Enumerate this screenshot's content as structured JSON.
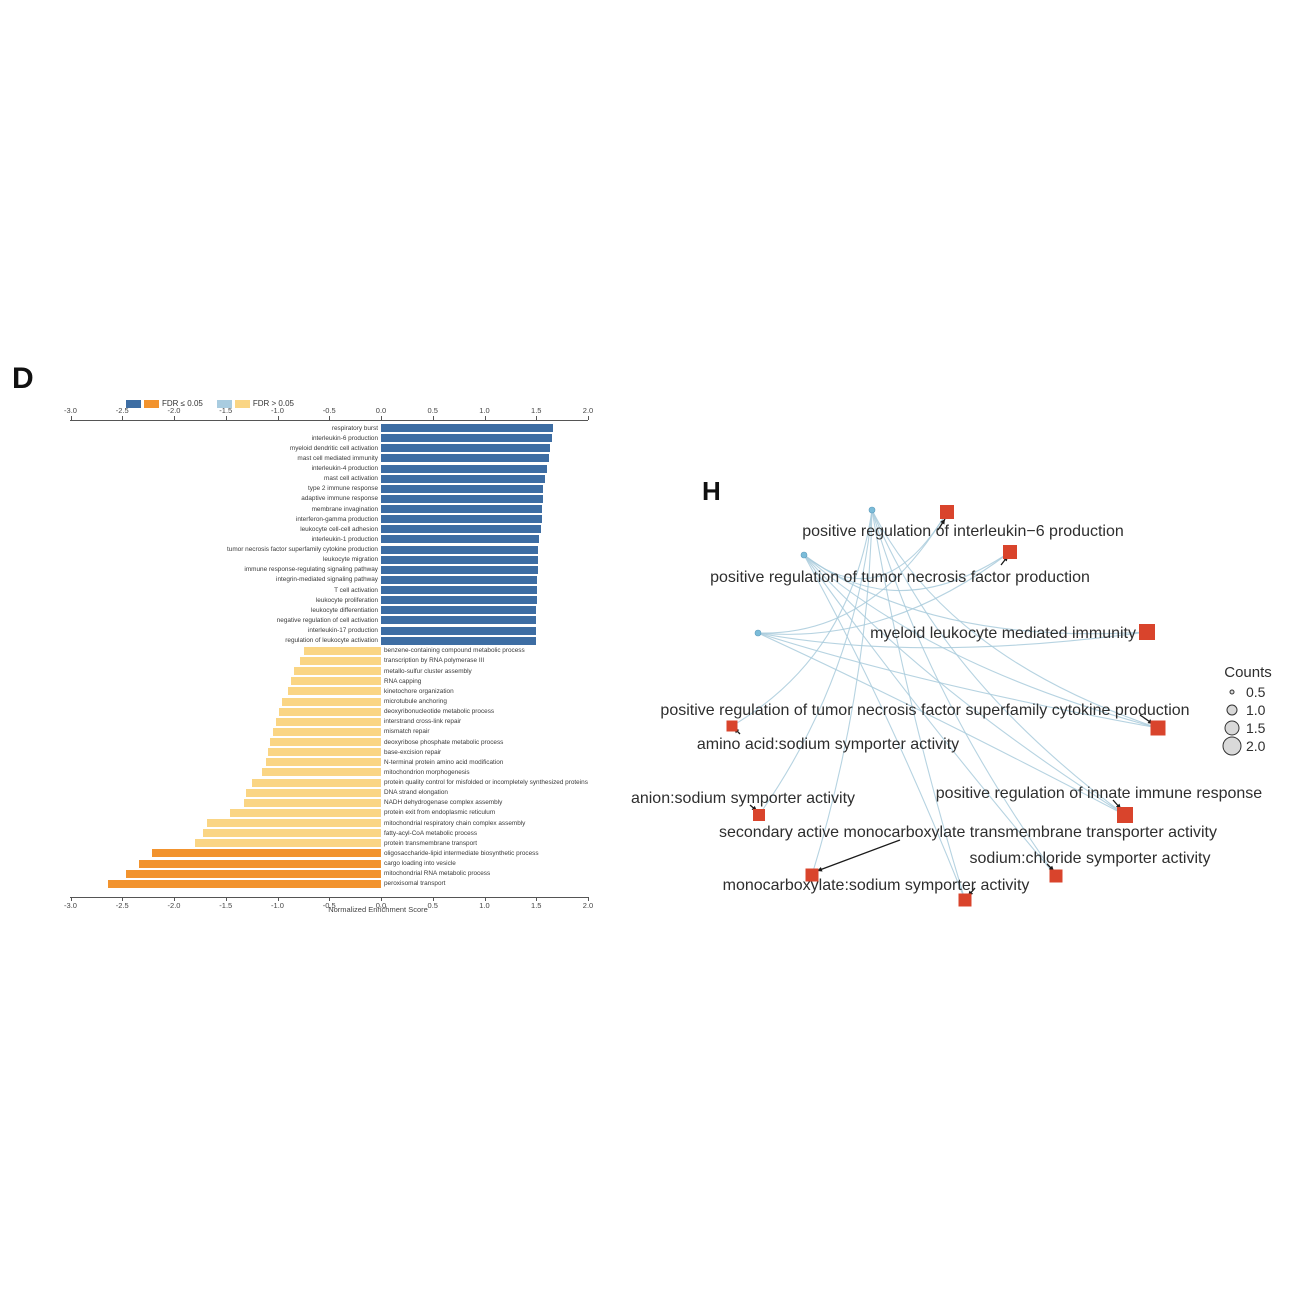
{
  "panel_d": {
    "label": "D",
    "legend": [
      {
        "swatches": [
          "#3d6da3",
          "#f2932e"
        ],
        "label": "FDR ≤ 0.05"
      },
      {
        "swatches": [
          "#a9cce0",
          "#fad584"
        ],
        "label": "FDR > 0.05"
      }
    ],
    "axis": {
      "label": "Normalized Enrichment Score",
      "ticks": [
        "-3.0",
        "-2.5",
        "-2.0",
        "-1.5",
        "-1.0",
        "-0.5",
        "0.0",
        "0.5",
        "1.0",
        "1.5",
        "2.0"
      ]
    },
    "chart_data": {
      "type": "bar",
      "orientation": "horizontal",
      "xlabel": "Normalized Enrichment Score",
      "xlim": [
        -3.0,
        2.2
      ],
      "fdr_colors": {
        "sig-pos": "#3d6da3",
        "ns-pos": "#a9cce0",
        "ns-neg": "#fad584",
        "sig-neg": "#f2932e"
      },
      "bars": [
        {
          "label": "respiratory burst",
          "value": 1.66,
          "fdr": "sig-pos"
        },
        {
          "label": "interleukin-6 production",
          "value": 1.65,
          "fdr": "sig-pos"
        },
        {
          "label": "myeloid dendritic cell activation",
          "value": 1.63,
          "fdr": "sig-pos"
        },
        {
          "label": "mast cell mediated immunity",
          "value": 1.62,
          "fdr": "sig-pos"
        },
        {
          "label": "interleukin-4 production",
          "value": 1.6,
          "fdr": "sig-pos"
        },
        {
          "label": "mast cell activation",
          "value": 1.58,
          "fdr": "sig-pos"
        },
        {
          "label": "type 2 immune response",
          "value": 1.57,
          "fdr": "sig-pos"
        },
        {
          "label": "adaptive immune response",
          "value": 1.57,
          "fdr": "sig-pos"
        },
        {
          "label": "membrane invagination",
          "value": 1.56,
          "fdr": "sig-pos"
        },
        {
          "label": "interferon-gamma production",
          "value": 1.56,
          "fdr": "sig-pos"
        },
        {
          "label": "leukocyte cell-cell adhesion",
          "value": 1.55,
          "fdr": "sig-pos"
        },
        {
          "label": "interleukin-1 production",
          "value": 1.53,
          "fdr": "sig-pos"
        },
        {
          "label": "tumor necrosis factor superfamily cytokine production",
          "value": 1.52,
          "fdr": "sig-pos"
        },
        {
          "label": "leukocyte migration",
          "value": 1.52,
          "fdr": "sig-pos"
        },
        {
          "label": "immune response-regulating signaling pathway",
          "value": 1.52,
          "fdr": "sig-pos"
        },
        {
          "label": "integrin-mediated signaling pathway",
          "value": 1.51,
          "fdr": "sig-pos"
        },
        {
          "label": "T cell activation",
          "value": 1.51,
          "fdr": "sig-pos"
        },
        {
          "label": "leukocyte proliferation",
          "value": 1.51,
          "fdr": "sig-pos"
        },
        {
          "label": "leukocyte differentiation",
          "value": 1.5,
          "fdr": "sig-pos"
        },
        {
          "label": "negative regulation of cell activation",
          "value": 1.5,
          "fdr": "sig-pos"
        },
        {
          "label": "interleukin-17 production",
          "value": 1.5,
          "fdr": "sig-pos"
        },
        {
          "label": "regulation of leukocyte activation",
          "value": 1.5,
          "fdr": "sig-pos"
        },
        {
          "label": "benzene-containing compound metabolic process",
          "value": -0.74,
          "fdr": "ns-neg"
        },
        {
          "label": "transcription by RNA polymerase III",
          "value": -0.78,
          "fdr": "ns-neg"
        },
        {
          "label": "metallo-sulfur cluster assembly",
          "value": -0.84,
          "fdr": "ns-neg"
        },
        {
          "label": "RNA capping",
          "value": -0.87,
          "fdr": "ns-neg"
        },
        {
          "label": "kinetochore organization",
          "value": -0.9,
          "fdr": "ns-neg"
        },
        {
          "label": "microtubule anchoring",
          "value": -0.96,
          "fdr": "ns-neg"
        },
        {
          "label": "deoxyribonucleotide metabolic process",
          "value": -0.99,
          "fdr": "ns-neg"
        },
        {
          "label": "interstrand cross-link repair",
          "value": -1.01,
          "fdr": "ns-neg"
        },
        {
          "label": "mismatch repair",
          "value": -1.04,
          "fdr": "ns-neg"
        },
        {
          "label": "deoxyribose phosphate metabolic process",
          "value": -1.07,
          "fdr": "ns-neg"
        },
        {
          "label": "base-excision repair",
          "value": -1.09,
          "fdr": "ns-neg"
        },
        {
          "label": "N-terminal protein amino acid modification",
          "value": -1.11,
          "fdr": "ns-neg"
        },
        {
          "label": "mitochondrion morphogenesis",
          "value": -1.15,
          "fdr": "ns-neg"
        },
        {
          "label": "protein quality control for misfolded or incompletely synthesized proteins",
          "value": -1.25,
          "fdr": "ns-neg"
        },
        {
          "label": "DNA strand elongation",
          "value": -1.3,
          "fdr": "ns-neg"
        },
        {
          "label": "NADH dehydrogenase complex assembly",
          "value": -1.32,
          "fdr": "ns-neg"
        },
        {
          "label": "protein exit from endoplasmic reticulum",
          "value": -1.46,
          "fdr": "ns-neg"
        },
        {
          "label": "mitochondrial respiratory chain complex assembly",
          "value": -1.68,
          "fdr": "ns-neg"
        },
        {
          "label": "fatty-acyl-CoA metabolic process",
          "value": -1.72,
          "fdr": "ns-neg"
        },
        {
          "label": "protein transmembrane transport",
          "value": -1.8,
          "fdr": "ns-neg"
        },
        {
          "label": "oligosaccharide-lipid intermediate biosynthetic process",
          "value": -2.21,
          "fdr": "sig-neg"
        },
        {
          "label": "cargo loading into vesicle",
          "value": -2.34,
          "fdr": "sig-neg"
        },
        {
          "label": "mitochondrial RNA metabolic process",
          "value": -2.46,
          "fdr": "sig-neg"
        },
        {
          "label": "peroxisomal transport",
          "value": -2.64,
          "fdr": "sig-neg"
        }
      ]
    }
  },
  "panel_h": {
    "label": "H",
    "chart_data": {
      "type": "network",
      "node_color": "#d9442c",
      "gene_color": "#7bbcd9",
      "edge_color": "#a9cbdc",
      "terms": [
        {
          "id": "il6",
          "label": "positive regulation of interleukin−6 production",
          "sq": [
            327,
            42,
            14
          ],
          "text": [
            343,
            66,
            "middle"
          ]
        },
        {
          "id": "tnf",
          "label": "positive regulation of tumor necrosis factor production",
          "sq": [
            390,
            82,
            14
          ],
          "text": [
            280,
            112,
            "middle"
          ]
        },
        {
          "id": "myeloid",
          "label": "myeloid leukocyte mediated immunity",
          "sq": [
            527,
            162,
            16
          ],
          "text": [
            516,
            168,
            "end"
          ]
        },
        {
          "id": "tnfsf",
          "label": "positive regulation of tumor necrosis factor superfamily cytokine production",
          "sq": [
            538,
            258,
            15
          ],
          "text": [
            305,
            245,
            "middle"
          ]
        },
        {
          "id": "amino",
          "label": "amino acid:sodium symporter activity",
          "sq": [
            112,
            256,
            11
          ],
          "text": [
            208,
            279,
            "middle"
          ]
        },
        {
          "id": "anion",
          "label": "anion:sodium symporter activity",
          "sq": [
            139,
            345,
            12
          ],
          "text": [
            123,
            333,
            "middle"
          ]
        },
        {
          "id": "innate",
          "label": "positive regulation of innate immune response",
          "sq": [
            505,
            345,
            16
          ],
          "text": [
            479,
            328,
            "middle"
          ]
        },
        {
          "id": "secondary",
          "label": "secondary active monocarboxylate transmembrane transporter activity",
          "sq": [
            192,
            405,
            13
          ],
          "text": [
            348,
            367,
            "middle"
          ]
        },
        {
          "id": "nacl",
          "label": "sodium:chloride symporter activity",
          "sq": [
            436,
            406,
            13
          ],
          "text": [
            470,
            393,
            "middle"
          ]
        },
        {
          "id": "mono",
          "label": "monocarboxylate:sodium symporter activity",
          "sq": [
            345,
            430,
            13
          ],
          "text": [
            256,
            420,
            "middle"
          ]
        }
      ],
      "genes": [
        [
          252,
          40
        ],
        [
          184,
          85
        ],
        [
          138,
          163
        ]
      ],
      "edges": [
        [
          0,
          "amino"
        ],
        [
          0,
          "anion"
        ],
        [
          0,
          "secondary"
        ],
        [
          0,
          "mono"
        ],
        [
          0,
          "nacl"
        ],
        [
          0,
          "innate"
        ],
        [
          0,
          "tnfsf"
        ],
        [
          1,
          "il6"
        ],
        [
          1,
          "tnf"
        ],
        [
          1,
          "myeloid"
        ],
        [
          1,
          "tnfsf"
        ],
        [
          1,
          "innate"
        ],
        [
          1,
          "nacl"
        ],
        [
          1,
          "mono"
        ],
        [
          2,
          "il6"
        ],
        [
          2,
          "tnf"
        ],
        [
          2,
          "myeloid"
        ],
        [
          2,
          "tnfsf"
        ],
        [
          2,
          "innate"
        ]
      ],
      "leaders": [
        {
          "from": [
            318,
            60
          ],
          "to": [
            325,
            49
          ]
        },
        {
          "from": [
            381,
            95
          ],
          "to": [
            388,
            86
          ]
        },
        {
          "from": [
            520,
            245
          ],
          "to": [
            533,
            254
          ]
        },
        {
          "from": [
            493,
            330
          ],
          "to": [
            501,
            339
          ]
        },
        {
          "from": [
            427,
            394
          ],
          "to": [
            434,
            401
          ]
        },
        {
          "from": [
            355,
            418
          ],
          "to": [
            348,
            426
          ]
        },
        {
          "from": [
            130,
            335
          ],
          "to": [
            137,
            341
          ]
        },
        {
          "from": [
            120,
            264
          ],
          "to": [
            114,
            258
          ]
        },
        {
          "from": [
            280,
            370
          ],
          "to": [
            197,
            401
          ]
        }
      ],
      "legend": {
        "title": "Counts",
        "items": [
          {
            "label": "0.5",
            "r": 2
          },
          {
            "label": "1.0",
            "r": 5
          },
          {
            "label": "1.5",
            "r": 7
          },
          {
            "label": "2.0",
            "r": 9
          }
        ]
      }
    }
  }
}
